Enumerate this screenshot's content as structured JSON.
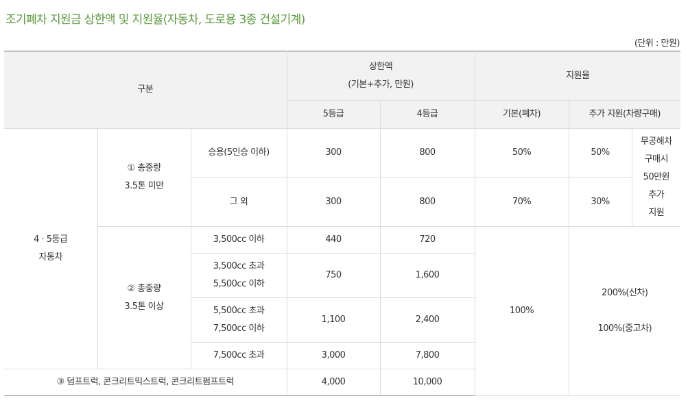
{
  "title": "조기폐차 지원금 상한액 및 지원율(자동차, 도로용 3종 건설기계)",
  "unit": "(단위 : 만원)",
  "header": {
    "category": "구분",
    "limit_title": "상한액",
    "limit_sub": "(기본+추가, 만원)",
    "rate_title": "지원율",
    "grade5": "5등급",
    "grade4": "4등급",
    "rate_basic": "기본(폐차)",
    "rate_extra": "추가 지원(차량구매)"
  },
  "group1": {
    "label_line1": "4 · 5등급",
    "label_line2": "자동차",
    "sub1_line1": "① 총중량",
    "sub1_line2": "3.5톤 미만",
    "sub2_line1": "② 총중량",
    "sub2_line2": "3.5톤 이상"
  },
  "rows": {
    "r1": {
      "type": "승용(5인승 이하)",
      "g5": "300",
      "g4": "800",
      "basic": "50%",
      "extra": "50%"
    },
    "r2": {
      "type": "그 외",
      "g5": "300",
      "g4": "800",
      "basic": "70%",
      "extra": "30%"
    },
    "r3": {
      "type": "3,500cc 이하",
      "g5": "440",
      "g4": "720"
    },
    "r4": {
      "type_line1": "3,500cc 초과",
      "type_line2": "5,500cc 이하",
      "g5": "750",
      "g4": "1,600"
    },
    "r5": {
      "type_line1": "5,500cc 초과",
      "type_line2": "7,500cc 이하",
      "g5": "1,100",
      "g4": "2,400"
    },
    "r6": {
      "type": "7,500cc 초과",
      "g5": "3,000",
      "g4": "7,800"
    },
    "r7": {
      "type": "③ 덤프트럭, 콘크리트믹스트럭, 콘크리트펌프트럭",
      "g5": "4,000",
      "g4": "10,000"
    }
  },
  "note_extra": {
    "line1": "무공해차",
    "line2": "구매시",
    "line3": "50만원",
    "line4": "추가",
    "line5": "지원"
  },
  "heavy_rates": {
    "basic": "100%",
    "extra_new": "200%(신차)",
    "extra_used": "100%(중고차)"
  }
}
